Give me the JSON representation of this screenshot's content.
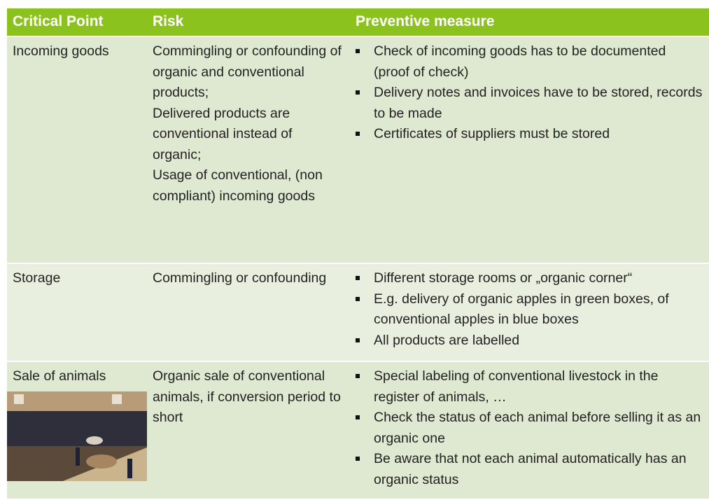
{
  "table": {
    "header": [
      "Critical Point",
      "Risk",
      "Preventive measure"
    ],
    "rows": [
      {
        "point": "Incoming goods",
        "risk": [
          "Commingling or confounding of organic and conventional products;",
          "Delivered products are conventional instead of organic;",
          "Usage of conventional, (non compliant) incoming goods"
        ],
        "measures": [
          "Check of incoming goods has to be documented (proof of check)",
          "Delivery notes and  invoices have to be stored, records to be made",
          "Certificates of suppliers must be stored"
        ]
      },
      {
        "point": "Storage",
        "risk": [
          "Commingling or confounding"
        ],
        "measures": [
          "Different storage rooms or „organic corner“",
          "E.g. delivery of organic apples in green boxes, of conventional apples in blue boxes",
          "All products are labelled"
        ]
      },
      {
        "point": "Sale of animals",
        "risk": [
          "Organic sale of conventional animals, if conversion period to short"
        ],
        "measures": [
          "Special labeling of conventional livestock in the register of animals, …",
          "Check the status of each animal before selling it as an organic one",
          "Be aware that not each animal automatically has an organic status"
        ]
      }
    ]
  }
}
